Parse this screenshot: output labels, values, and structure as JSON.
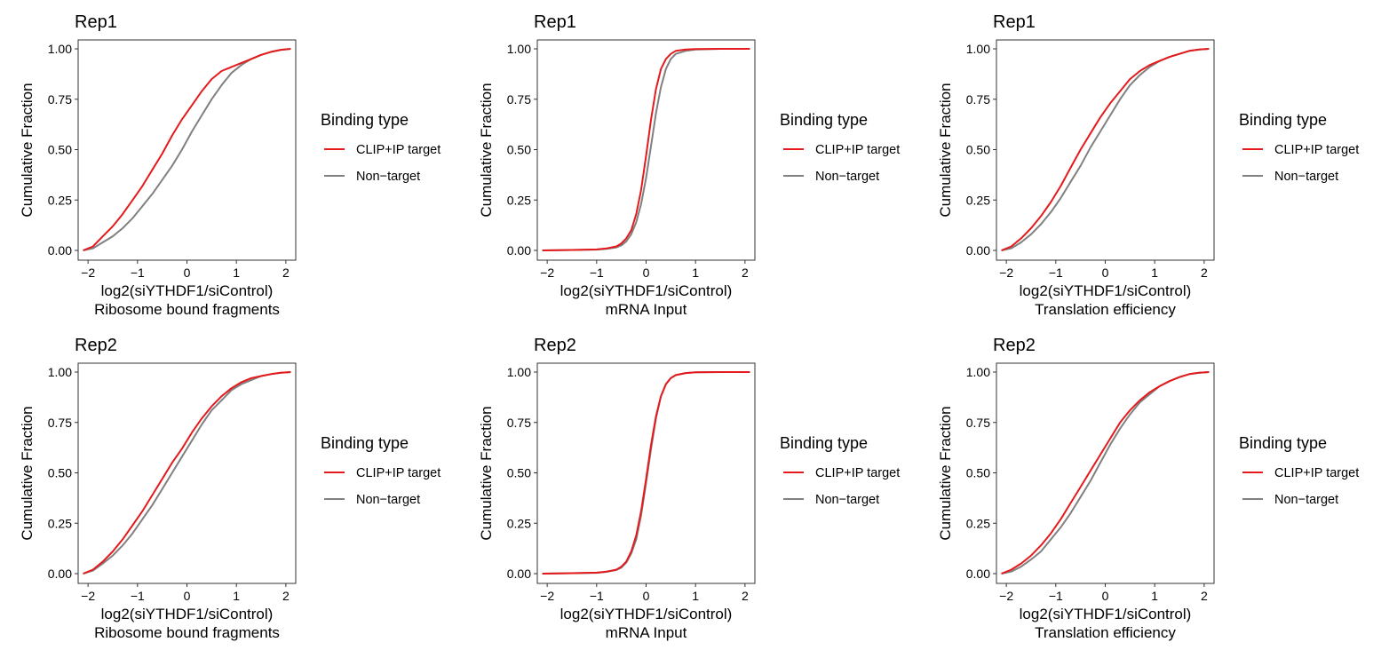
{
  "legend_defaults": {
    "title": "Binding type"
  },
  "colors": {
    "target": "#e41a1c",
    "nontarget": "#808080",
    "axis": "#333333"
  },
  "chart_data": [
    {
      "type": "line",
      "title": "Rep1",
      "xlabel": "log2(siYTHDF1/siControl)",
      "xlabel2": "Ribosome bound fragments",
      "ylabel": "Cumulative Fraction",
      "xlim": [
        -2.2,
        2.2
      ],
      "ylim": [
        0,
        1
      ],
      "xticks": [
        "−2",
        "−1",
        "0",
        "1",
        "2"
      ],
      "yticks": [
        "0.00",
        "0.25",
        "0.50",
        "0.75",
        "1.00"
      ],
      "grid": false,
      "legend": {
        "title": "Binding type",
        "position": "right",
        "entries": [
          "CLIP+IP target",
          "Non−target"
        ]
      },
      "series": [
        {
          "name": "CLIP+IP target",
          "x": [
            -2.1,
            -1.9,
            -1.7,
            -1.5,
            -1.3,
            -1.1,
            -0.9,
            -0.7,
            -0.5,
            -0.3,
            -0.1,
            0.1,
            0.3,
            0.5,
            0.7,
            0.9,
            1.1,
            1.3,
            1.5,
            1.7,
            1.9,
            2.1
          ],
          "y": [
            0,
            0.02,
            0.07,
            0.12,
            0.18,
            0.25,
            0.32,
            0.4,
            0.48,
            0.57,
            0.65,
            0.72,
            0.79,
            0.85,
            0.89,
            0.91,
            0.93,
            0.95,
            0.97,
            0.985,
            0.995,
            1
          ]
        },
        {
          "name": "Non-target",
          "x": [
            -2.1,
            -1.9,
            -1.7,
            -1.5,
            -1.3,
            -1.1,
            -0.9,
            -0.7,
            -0.5,
            -0.3,
            -0.1,
            0.1,
            0.3,
            0.5,
            0.7,
            0.9,
            1.1,
            1.3,
            1.5,
            1.7,
            1.9,
            2.1
          ],
          "y": [
            0,
            0.01,
            0.04,
            0.07,
            0.11,
            0.16,
            0.22,
            0.28,
            0.35,
            0.42,
            0.5,
            0.59,
            0.67,
            0.75,
            0.82,
            0.88,
            0.92,
            0.95,
            0.97,
            0.985,
            0.995,
            1
          ]
        }
      ]
    },
    {
      "type": "line",
      "title": "Rep1",
      "xlabel": "log2(siYTHDF1/siControl)",
      "xlabel2": "mRNA Input",
      "ylabel": "Cumulative Fraction",
      "xlim": [
        -2.2,
        2.2
      ],
      "ylim": [
        0,
        1
      ],
      "xticks": [
        "−2",
        "−1",
        "0",
        "1",
        "2"
      ],
      "yticks": [
        "0.00",
        "0.25",
        "0.50",
        "0.75",
        "1.00"
      ],
      "grid": false,
      "legend": {
        "title": "Binding type",
        "position": "right",
        "entries": [
          "CLIP+IP target",
          "Non−target"
        ]
      },
      "series": [
        {
          "name": "CLIP+IP target",
          "x": [
            -2.1,
            -1.5,
            -1.0,
            -0.8,
            -0.6,
            -0.5,
            -0.4,
            -0.3,
            -0.2,
            -0.1,
            0.0,
            0.1,
            0.2,
            0.3,
            0.4,
            0.5,
            0.6,
            0.8,
            1.0,
            1.5,
            2.1
          ],
          "y": [
            0,
            0.002,
            0.005,
            0.01,
            0.02,
            0.035,
            0.06,
            0.1,
            0.18,
            0.3,
            0.47,
            0.65,
            0.8,
            0.9,
            0.95,
            0.975,
            0.99,
            0.997,
            0.999,
            1,
            1
          ]
        },
        {
          "name": "Non-target",
          "x": [
            -2.1,
            -1.5,
            -1.0,
            -0.8,
            -0.6,
            -0.5,
            -0.4,
            -0.3,
            -0.2,
            -0.1,
            0.0,
            0.1,
            0.2,
            0.3,
            0.4,
            0.5,
            0.6,
            0.8,
            1.0,
            1.5,
            2.1
          ],
          "y": [
            0,
            0.002,
            0.004,
            0.008,
            0.015,
            0.025,
            0.045,
            0.08,
            0.14,
            0.23,
            0.36,
            0.52,
            0.68,
            0.81,
            0.9,
            0.95,
            0.975,
            0.99,
            0.997,
            1,
            1
          ]
        }
      ]
    },
    {
      "type": "line",
      "title": "Rep1",
      "xlabel": "log2(siYTHDF1/siControl)",
      "xlabel2": "Translation efficiency",
      "ylabel": "Cumulative Fraction",
      "xlim": [
        -2.2,
        2.2
      ],
      "ylim": [
        0,
        1
      ],
      "xticks": [
        "−2",
        "−1",
        "0",
        "1",
        "2"
      ],
      "yticks": [
        "0.00",
        "0.25",
        "0.50",
        "0.75",
        "1.00"
      ],
      "grid": false,
      "legend": {
        "title": "Binding type",
        "position": "right",
        "entries": [
          "CLIP+IP target",
          "Non−target"
        ]
      },
      "series": [
        {
          "name": "CLIP+IP target",
          "x": [
            -2.1,
            -1.9,
            -1.7,
            -1.5,
            -1.3,
            -1.1,
            -0.9,
            -0.7,
            -0.5,
            -0.3,
            -0.1,
            0.1,
            0.3,
            0.5,
            0.7,
            0.9,
            1.1,
            1.3,
            1.5,
            1.7,
            1.9,
            2.1
          ],
          "y": [
            0,
            0.02,
            0.06,
            0.11,
            0.17,
            0.24,
            0.32,
            0.41,
            0.5,
            0.58,
            0.66,
            0.73,
            0.79,
            0.85,
            0.89,
            0.92,
            0.94,
            0.96,
            0.975,
            0.99,
            0.997,
            1
          ]
        },
        {
          "name": "Non-target",
          "x": [
            -2.1,
            -1.9,
            -1.7,
            -1.5,
            -1.3,
            -1.1,
            -0.9,
            -0.7,
            -0.5,
            -0.3,
            -0.1,
            0.1,
            0.3,
            0.5,
            0.7,
            0.9,
            1.1,
            1.3,
            1.5,
            1.7,
            1.9,
            2.1
          ],
          "y": [
            0,
            0.01,
            0.04,
            0.08,
            0.13,
            0.19,
            0.26,
            0.34,
            0.42,
            0.51,
            0.59,
            0.67,
            0.75,
            0.82,
            0.87,
            0.91,
            0.94,
            0.96,
            0.975,
            0.99,
            0.997,
            1
          ]
        }
      ]
    },
    {
      "type": "line",
      "title": "Rep2",
      "xlabel": "log2(siYTHDF1/siControl)",
      "xlabel2": "Ribosome bound fragments",
      "ylabel": "Cumulative Fraction",
      "xlim": [
        -2.2,
        2.2
      ],
      "ylim": [
        0,
        1
      ],
      "xticks": [
        "−2",
        "−1",
        "0",
        "1",
        "2"
      ],
      "yticks": [
        "0.00",
        "0.25",
        "0.50",
        "0.75",
        "1.00"
      ],
      "grid": false,
      "legend": {
        "title": "Binding type",
        "position": "right",
        "entries": [
          "CLIP+IP target",
          "Non−target"
        ]
      },
      "series": [
        {
          "name": "CLIP+IP target",
          "x": [
            -2.1,
            -1.9,
            -1.7,
            -1.5,
            -1.3,
            -1.1,
            -0.9,
            -0.7,
            -0.5,
            -0.3,
            -0.1,
            0.1,
            0.3,
            0.5,
            0.7,
            0.9,
            1.1,
            1.3,
            1.5,
            1.7,
            1.9,
            2.1
          ],
          "y": [
            0,
            0.02,
            0.06,
            0.11,
            0.17,
            0.24,
            0.31,
            0.39,
            0.47,
            0.55,
            0.62,
            0.7,
            0.77,
            0.83,
            0.88,
            0.92,
            0.95,
            0.97,
            0.98,
            0.99,
            0.997,
            1
          ]
        },
        {
          "name": "Non-target",
          "x": [
            -2.1,
            -1.9,
            -1.7,
            -1.5,
            -1.3,
            -1.1,
            -0.9,
            -0.7,
            -0.5,
            -0.3,
            -0.1,
            0.1,
            0.3,
            0.5,
            0.7,
            0.9,
            1.1,
            1.3,
            1.5,
            1.7,
            1.9,
            2.1
          ],
          "y": [
            0,
            0.015,
            0.05,
            0.09,
            0.14,
            0.2,
            0.27,
            0.34,
            0.42,
            0.5,
            0.58,
            0.66,
            0.74,
            0.81,
            0.86,
            0.91,
            0.94,
            0.96,
            0.98,
            0.99,
            0.997,
            1
          ]
        }
      ]
    },
    {
      "type": "line",
      "title": "Rep2",
      "xlabel": "log2(siYTHDF1/siControl)",
      "xlabel2": "mRNA Input",
      "ylabel": "Cumulative Fraction",
      "xlim": [
        -2.2,
        2.2
      ],
      "ylim": [
        0,
        1
      ],
      "xticks": [
        "−2",
        "−1",
        "0",
        "1",
        "2"
      ],
      "yticks": [
        "0.00",
        "0.25",
        "0.50",
        "0.75",
        "1.00"
      ],
      "grid": false,
      "legend": {
        "title": "Binding type",
        "position": "right",
        "entries": [
          "CLIP+IP target",
          "Non−target"
        ]
      },
      "series": [
        {
          "name": "CLIP+IP target",
          "x": [
            -2.1,
            -1.5,
            -1.0,
            -0.8,
            -0.6,
            -0.5,
            -0.4,
            -0.3,
            -0.2,
            -0.1,
            0.0,
            0.1,
            0.2,
            0.3,
            0.4,
            0.5,
            0.6,
            0.8,
            1.0,
            1.5,
            2.1
          ],
          "y": [
            0,
            0.002,
            0.005,
            0.01,
            0.02,
            0.035,
            0.06,
            0.11,
            0.19,
            0.31,
            0.47,
            0.64,
            0.78,
            0.88,
            0.94,
            0.97,
            0.985,
            0.995,
            0.999,
            1,
            1
          ]
        },
        {
          "name": "Non-target",
          "x": [
            -2.1,
            -1.5,
            -1.0,
            -0.8,
            -0.6,
            -0.5,
            -0.4,
            -0.3,
            -0.2,
            -0.1,
            0.0,
            0.1,
            0.2,
            0.3,
            0.4,
            0.5,
            0.6,
            0.8,
            1.0,
            1.5,
            2.1
          ],
          "y": [
            0,
            0.002,
            0.004,
            0.009,
            0.018,
            0.03,
            0.055,
            0.1,
            0.17,
            0.29,
            0.45,
            0.62,
            0.77,
            0.88,
            0.94,
            0.97,
            0.985,
            0.995,
            0.999,
            1,
            1
          ]
        }
      ]
    },
    {
      "type": "line",
      "title": "Rep2",
      "xlabel": "log2(siYTHDF1/siControl)",
      "xlabel2": "Translation efficiency",
      "ylabel": "Cumulative Fraction",
      "xlim": [
        -2.2,
        2.2
      ],
      "ylim": [
        0,
        1
      ],
      "xticks": [
        "−2",
        "−1",
        "0",
        "1",
        "2"
      ],
      "yticks": [
        "0.00",
        "0.25",
        "0.50",
        "0.75",
        "1.00"
      ],
      "grid": false,
      "legend": {
        "title": "Binding type",
        "position": "right",
        "entries": [
          "CLIP+IP target",
          "Non−target"
        ]
      },
      "series": [
        {
          "name": "CLIP+IP target",
          "x": [
            -2.1,
            -1.9,
            -1.7,
            -1.5,
            -1.3,
            -1.1,
            -0.9,
            -0.7,
            -0.5,
            -0.3,
            -0.1,
            0.1,
            0.3,
            0.5,
            0.7,
            0.9,
            1.1,
            1.3,
            1.5,
            1.7,
            1.9,
            2.1
          ],
          "y": [
            0,
            0.02,
            0.05,
            0.09,
            0.14,
            0.2,
            0.27,
            0.35,
            0.43,
            0.51,
            0.59,
            0.67,
            0.75,
            0.81,
            0.86,
            0.9,
            0.93,
            0.955,
            0.975,
            0.99,
            0.997,
            1
          ]
        },
        {
          "name": "Non-target",
          "x": [
            -2.1,
            -1.9,
            -1.7,
            -1.5,
            -1.3,
            -1.1,
            -0.9,
            -0.7,
            -0.5,
            -0.3,
            -0.1,
            0.1,
            0.3,
            0.5,
            0.7,
            0.9,
            1.1,
            1.3,
            1.5,
            1.7,
            1.9,
            2.1
          ],
          "y": [
            0,
            0.01,
            0.035,
            0.07,
            0.11,
            0.17,
            0.23,
            0.3,
            0.38,
            0.46,
            0.55,
            0.64,
            0.72,
            0.79,
            0.85,
            0.89,
            0.93,
            0.955,
            0.975,
            0.99,
            0.997,
            1
          ]
        }
      ]
    }
  ]
}
